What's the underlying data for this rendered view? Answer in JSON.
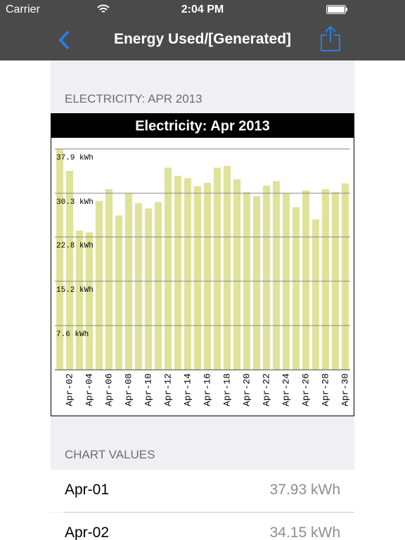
{
  "status_bar": {
    "carrier": "Carrier",
    "time": "2:04 PM"
  },
  "nav": {
    "title": "Energy Used/[Generated]"
  },
  "section_header": "ELECTRICITY: APR 2013",
  "chart_data": {
    "type": "bar",
    "title": "Electricity: Apr 2013",
    "categories": [
      null,
      "Apr-02",
      null,
      "Apr-04",
      null,
      "Apr-06",
      null,
      "Apr-08",
      null,
      "Apr-10",
      null,
      "Apr-12",
      null,
      "Apr-14",
      null,
      "Apr-16",
      null,
      "Apr-18",
      null,
      "Apr-20",
      null,
      "Apr-22",
      null,
      "Apr-24",
      null,
      "Apr-26",
      null,
      "Apr-28",
      null,
      "Apr-30"
    ],
    "values": [
      37.93,
      34.15,
      23.9,
      23.6,
      29.0,
      31.0,
      26.5,
      30.3,
      28.6,
      27.7,
      28.8,
      34.7,
      33.3,
      32.9,
      31.5,
      32.1,
      34.7,
      35.0,
      32.7,
      30.5,
      29.8,
      31.6,
      32.4,
      30.3,
      27.9,
      30.8,
      25.8,
      31.0,
      30.5,
      32.0
    ],
    "color": "#dfe39a",
    "ylim": [
      0,
      39.7
    ],
    "yticks": [
      {
        "value": 7.6,
        "label": "7.6 kWh"
      },
      {
        "value": 15.2,
        "label": "15.2 kWh"
      },
      {
        "value": 22.8,
        "label": "22.8 kWh"
      },
      {
        "value": 30.3,
        "label": "30.3 kWh"
      },
      {
        "value": 37.9,
        "label": "37.9 kWh"
      }
    ],
    "grid": true
  },
  "list": {
    "header": "CHART VALUES",
    "rows": [
      {
        "date": "Apr-01",
        "value": "37.93 kWh"
      },
      {
        "date": "Apr-02",
        "value": "34.15 kWh"
      }
    ]
  }
}
